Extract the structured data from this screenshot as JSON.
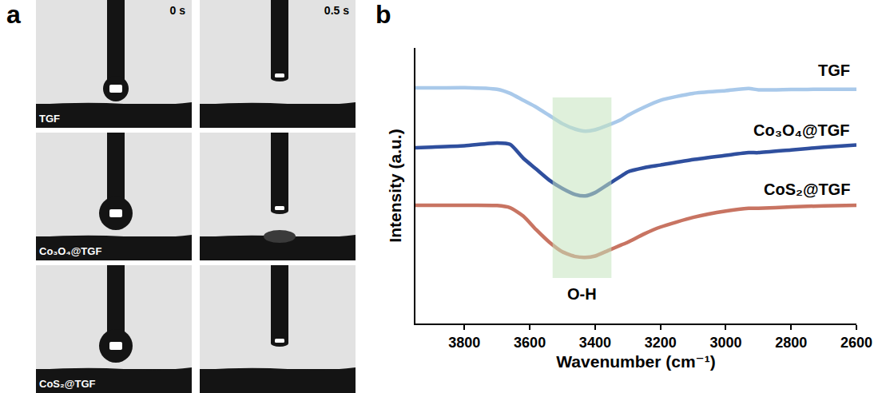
{
  "panels": {
    "a": {
      "letter": "a",
      "times": [
        "0 s",
        "0.5 s"
      ],
      "samples": [
        {
          "label": "TGF",
          "drop_left_on_surface": false
        },
        {
          "label": "Co₃O₄@TGF",
          "drop_left_on_surface": true
        },
        {
          "label": "CoS₂@TGF",
          "drop_left_on_surface": false
        }
      ]
    },
    "b": {
      "letter": "b"
    }
  },
  "chart_data": {
    "type": "line",
    "x_label": "Wavenumber (cm⁻¹)",
    "y_label": "Intensity (a.u.)",
    "x": [
      3950,
      3900,
      3800,
      3700,
      3660,
      3620,
      3580,
      3540,
      3500,
      3460,
      3430,
      3400,
      3360,
      3320,
      3300,
      3250,
      3200,
      3100,
      3000,
      2930,
      2900,
      2800,
      2700,
      2600
    ],
    "xlim": [
      3950,
      2600
    ],
    "xticks": [
      3800,
      3600,
      3400,
      3200,
      3000,
      2800,
      2600
    ],
    "ylim": [
      0,
      100
    ],
    "yticks": [],
    "tick_labels": "x",
    "grid": false,
    "series": [
      {
        "name": "TGF",
        "color": "#a9c9ea",
        "values": [
          85.5,
          85.5,
          85.6,
          85,
          83.5,
          81,
          78.5,
          75.5,
          72.5,
          70.5,
          69.8,
          70.3,
          72,
          74,
          75.5,
          78.5,
          81,
          83.5,
          84.5,
          85.3,
          84.8,
          84.9,
          85,
          85
        ]
      },
      {
        "name": "Co₃O₄@TGF",
        "color": "#2f4f9e",
        "values": [
          63.8,
          64,
          64.5,
          65.5,
          65,
          60,
          56,
          52,
          49,
          46.8,
          46.3,
          47.5,
          50.5,
          53.5,
          55,
          56.5,
          57.5,
          59.5,
          61,
          62,
          62,
          63,
          64,
          64.8
        ]
      },
      {
        "name": "CoS₂@TGF",
        "color": "#c87462",
        "values": [
          42.9,
          42.9,
          42.9,
          42.8,
          42,
          39,
          34,
          29.5,
          26,
          24.3,
          24,
          24.5,
          26.5,
          28.5,
          29.5,
          32.5,
          35,
          38.5,
          40.8,
          41.8,
          41.8,
          42.3,
          42.7,
          42.9
        ]
      }
    ],
    "highlight": {
      "label": "O-H",
      "x": [
        3530,
        3350
      ],
      "y": [
        16.5,
        82
      ],
      "color": "#c5e3bd"
    }
  }
}
